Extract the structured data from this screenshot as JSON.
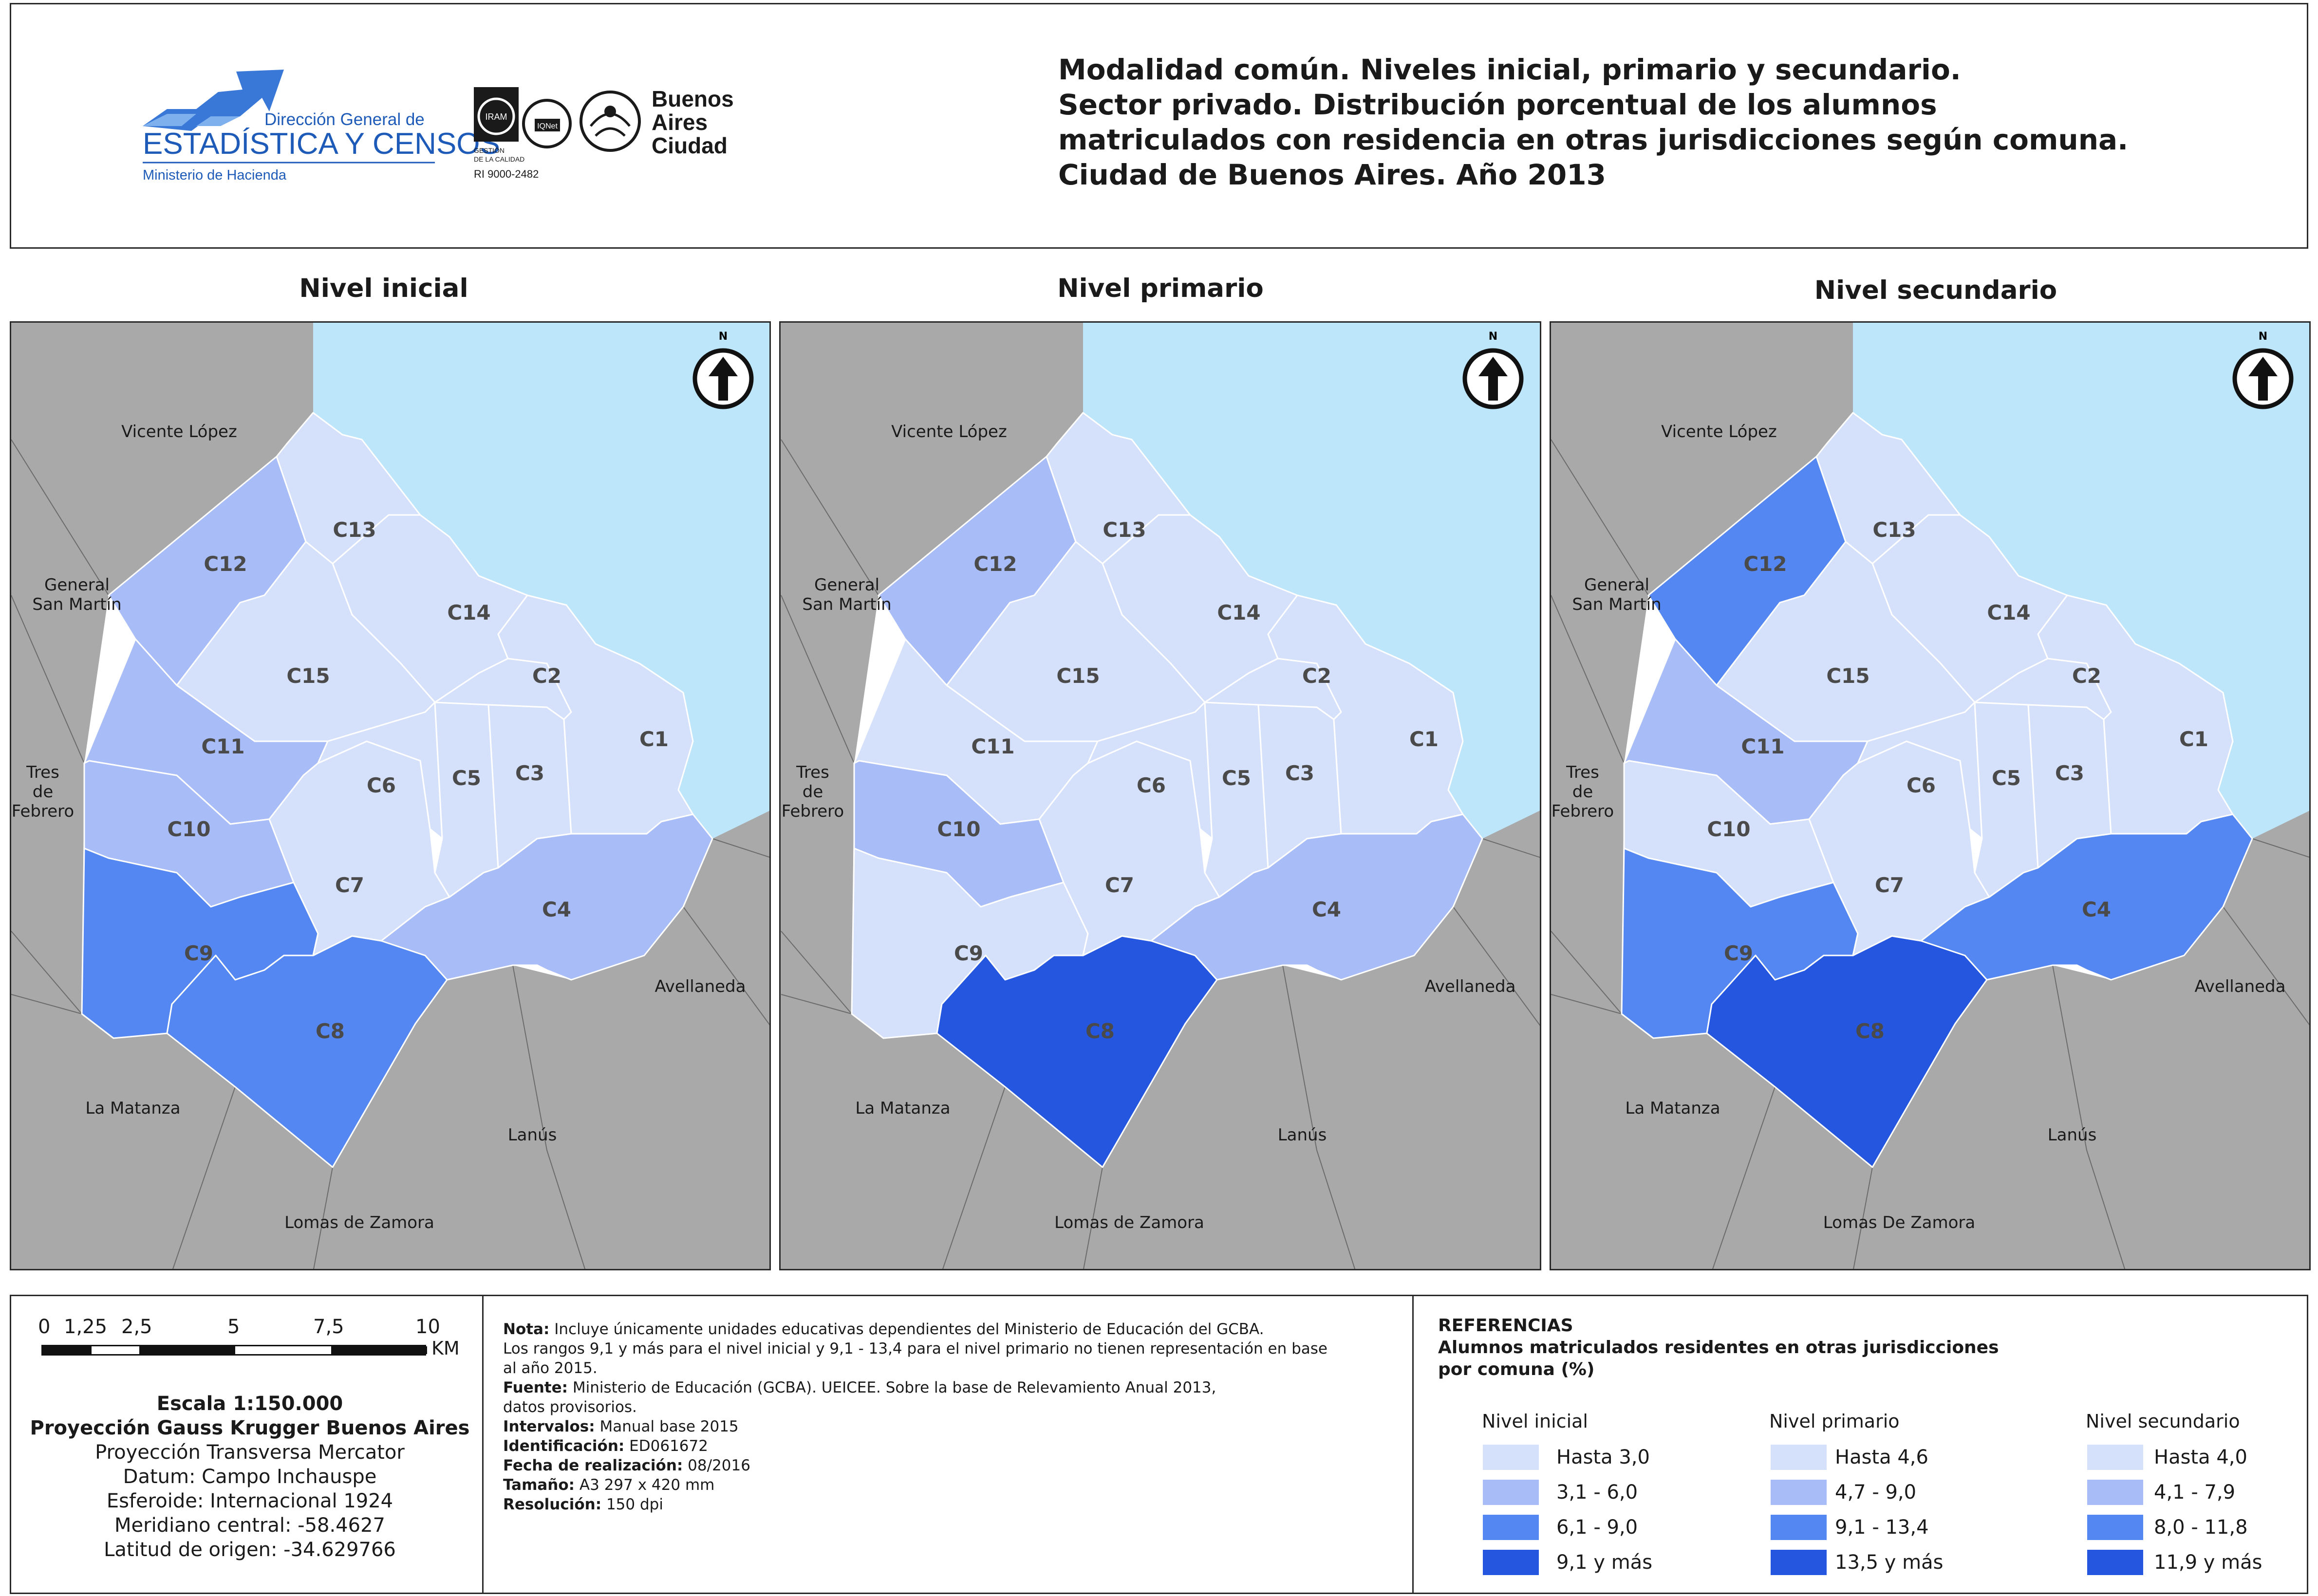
{
  "header": {
    "logo": {
      "org_line1": "Dirección General de",
      "org_line2": "ESTADÍSTICA Y CENSOS",
      "org_line3": "Ministerio de Hacienda",
      "iram_line1": "GESTIÓN",
      "iram_line2": "DE LA CALIDAD",
      "iram_line3": "RI 9000-2482",
      "iqnet": "IQNet",
      "city_line1": "Buenos",
      "city_line2": "Aires",
      "city_line3": "Ciudad"
    },
    "title_lines": [
      "Modalidad común. Niveles inicial, primario y secundario.",
      "Sector privado. Distribución porcentual de los alumnos",
      "matriculados con residencia en otras jurisdicciones según comuna.",
      "Ciudad de Buenos Aires. Año 2013"
    ]
  },
  "colors": {
    "river": "#bde6fa",
    "outside": "#a9a9a9",
    "class1": "#d5e0fb",
    "class2": "#a8bcf8",
    "class3": "#5487f2",
    "class4": "#2456e0"
  },
  "maps": [
    {
      "title": "Nivel inicial",
      "north": "N",
      "jurisdictions": [
        "Vicente López",
        "General",
        "San Martín",
        "Tres",
        "de",
        "Febrero",
        "La Matanza",
        "Lomas de Zamora",
        "Lanús",
        "Avellaneda"
      ],
      "comunas": {
        "C1": 1,
        "C2": 1,
        "C3": 1,
        "C4": 2,
        "C5": 1,
        "C6": 1,
        "C7": 1,
        "C8": 3,
        "C9": 3,
        "C10": 2,
        "C11": 2,
        "C12": 2,
        "C13": 1,
        "C14": 1,
        "C15": 1
      }
    },
    {
      "title": "Nivel primario",
      "north": "N",
      "jurisdictions": [
        "Vicente López",
        "General",
        "San Martín",
        "Tres",
        "de",
        "Febrero",
        "La Matanza",
        "Lomas de Zamora",
        "Lanús",
        "Avellaneda"
      ],
      "comunas": {
        "C1": 1,
        "C2": 1,
        "C3": 1,
        "C4": 2,
        "C5": 1,
        "C6": 1,
        "C7": 1,
        "C8": 4,
        "C9": 1,
        "C10": 2,
        "C11": 1,
        "C12": 2,
        "C13": 1,
        "C14": 1,
        "C15": 1
      }
    },
    {
      "title": "Nivel secundario",
      "north": "N",
      "jurisdictions": [
        "Vicente López",
        "General",
        "San Martín",
        "Tres",
        "de",
        "Febrero",
        "La Matanza",
        "Lomas De Zamora",
        "Lanús",
        "Avellaneda"
      ],
      "comunas": {
        "C1": 1,
        "C2": 1,
        "C3": 1,
        "C4": 3,
        "C5": 1,
        "C6": 1,
        "C7": 1,
        "C8": 4,
        "C9": 3,
        "C10": 1,
        "C11": 2,
        "C12": 3,
        "C13": 1,
        "C14": 1,
        "C15": 1
      }
    }
  ],
  "scale": {
    "ticks": [
      "0",
      "1,25",
      "2,5",
      "5",
      "7,5",
      "10"
    ],
    "unit": "KM",
    "lines": [
      "Escala 1:150.000",
      "Proyección Gauss Krugger Buenos Aires",
      "Proyección Transversa Mercator",
      "Datum: Campo Inchauspe",
      "Esferoide: Internacional 1924",
      "Meridiano central: -58.4627",
      "Latitud de origen: -34.629766"
    ]
  },
  "notes": {
    "nota_label": "Nota:",
    "nota_text1": " Incluye únicamente unidades educativas dependientes del Ministerio de Educación del GCBA.",
    "nota_text2": "Los rangos 9,1 y más para el nivel inicial y 9,1 - 13,4 para el nivel primario no tienen representación en base",
    "nota_text3": "al año 2015.",
    "fuente_label": "Fuente:",
    "fuente_text1": "  Ministerio de Educación (GCBA). UEICEE. Sobre la base de Relevamiento Anual 2013,",
    "fuente_text2": "datos provisorios.",
    "intervalos_label": "Intervalos:",
    "intervalos_text": " Manual base 2015",
    "identificacion_label": "Identificación:",
    "identificacion_text": " ED061672",
    "fecha_label": "Fecha de realización:",
    "fecha_text": " 08/2016",
    "tamano_label": "Tamaño:",
    "tamano_text": " A3 297 x 420 mm",
    "resolucion_label": "Resolución:",
    "resolucion_text": " 150 dpi"
  },
  "legend": {
    "title1": "REFERENCIAS",
    "title2": "Alumnos matriculados residentes en otras jurisdicciones",
    "title3": "por comuna (%)",
    "levels": [
      {
        "name": "Nivel inicial",
        "ranges": [
          "Hasta 3,0",
          "3,1 - 6,0",
          "6,1 - 9,0",
          "9,1 y más"
        ]
      },
      {
        "name": "Nivel primario",
        "ranges": [
          "Hasta 4,6",
          "4,7 - 9,0",
          "9,1 - 13,4",
          "13,5 y más"
        ]
      },
      {
        "name": "Nivel secundario",
        "ranges": [
          "Hasta 4,0",
          "4,1 - 7,9",
          "8,0 - 11,8",
          "11,9 y más"
        ]
      }
    ]
  }
}
